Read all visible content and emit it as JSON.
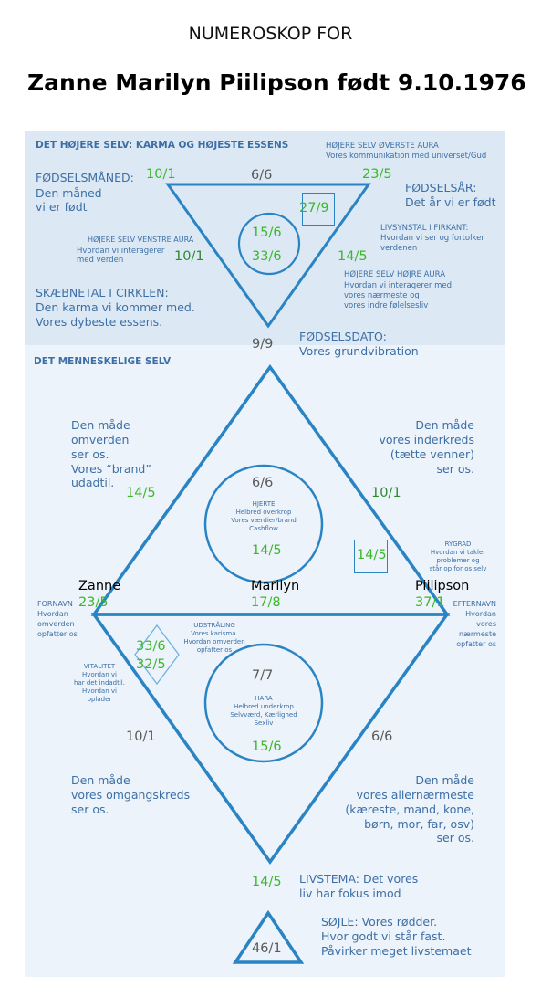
{
  "title": "NUMEROSKOP FOR",
  "subtitle": "Zanne Marilyn Piilipson født 9.10.1976",
  "upper": {
    "header": "DET HØJERE SELV: KARMA OG HØJESTE ESSENS",
    "aura_top_title": "HØJERE SELV ØVERSTE AURA",
    "aura_top_desc": "Vores kommunikation med universet/Gud",
    "birth_month_title": "FØDSELSMÅNED:",
    "birth_month_desc1": "Den måned",
    "birth_month_desc2": "vi er født",
    "birth_year_title": "FØDSELSÅR:",
    "birth_year_desc": "Det år vi er født",
    "left_aura_title": "HØJERE SELV VENSTRE AURA",
    "left_aura_desc1": "Hvordan vi interagerer",
    "left_aura_desc2": "med verden",
    "worldview_title": "LIVSYNSTAL I FIRKANT:",
    "worldview_desc1": "Hvordan vi ser og fortolker",
    "worldview_desc2": "verdenen",
    "right_aura_title": "HØJERE SELV HØJRE AURA",
    "right_aura_desc1": "Hvordan vi interagerer med",
    "right_aura_desc2": "vores nærmeste og",
    "right_aura_desc3": "vores indre følelsesliv",
    "fate_title": "SKÆBNETAL I CIRKLEN:",
    "fate_desc1": "Den karma vi kommer med.",
    "fate_desc2": "Vores dybeste essens.",
    "birthdate_title": "FØDSELSDATO:",
    "birthdate_desc": "Vores grundvibration",
    "n_month": "10/1",
    "n_top": "6/6",
    "n_year": "23/5",
    "n_square": "27/9",
    "n_circle1": "15/6",
    "n_circle2": "33/6",
    "n_left": "10/1",
    "n_right": "14/5",
    "n_birthdate": "9/9"
  },
  "human": {
    "header": "DET MENNESKELIGE SELV",
    "world_desc": [
      "Den måde",
      "omverden",
      "ser os.",
      "Vores “brand”",
      "udadtil."
    ],
    "inner_desc": [
      "Den måde",
      "vores inderkreds",
      "(tætte venner)",
      "ser os."
    ],
    "heart_title": "HJERTE",
    "heart_desc": [
      "Helbred overkrop",
      "Vores værdier/brand",
      "Cashflow"
    ],
    "spine_title": "RYGRAD",
    "spine_desc": [
      "Hvordan vi takler",
      "problemer og",
      "står op for os selv"
    ],
    "firstname_title": "FORNAVN",
    "firstname_desc": [
      "Hvordan",
      "omverden",
      "opfatter os"
    ],
    "lastname_title": "EFTERNAVN",
    "lastname_desc": [
      "Hvordan",
      "vores",
      "nærmeste",
      "opfatter os"
    ],
    "radiance_title": "UDSTRÅLING",
    "radiance_desc": [
      "Vores karisma.",
      "Hvordan omverden",
      "opfatter os"
    ],
    "vitality_title": "VITALITET",
    "vitality_desc": [
      "Hvordan vi",
      "har det indadtil.",
      "Hvordan vi",
      "oplader"
    ],
    "hara_title": "HARA",
    "hara_desc": [
      "Helbred underkrop",
      "Selvværd, Kærlighed",
      "Sexliv"
    ],
    "social_desc": [
      "Den måde",
      "vores omgangskreds",
      "ser os."
    ],
    "closest_desc": [
      "Den måde",
      "vores allernærmeste",
      "(kæreste, mand, kone,",
      "børn, mor, far, osv)",
      "ser os."
    ],
    "theme_title": "LIVSTEMA: Det vores",
    "theme_desc": "liv har fokus imod",
    "pillar_title": "SØJLE: Vores rødder.",
    "pillar_desc1": "Hvor godt vi står fast.",
    "pillar_desc2": "Påvirker meget livstemaet",
    "name_first": "Zanne",
    "name_middle": "Marilyn",
    "name_last": "Piilipson",
    "n_first": "23/5",
    "n_middle": "17/8",
    "n_last": "37/1",
    "n_upper_left": "14/5",
    "n_upper_right": "10/1",
    "n_heart_top": "6/6",
    "n_heart_bottom": "14/5",
    "n_spine": "14/5",
    "n_radiance": "33/6",
    "n_vitality": "32/5",
    "n_hara_top": "7/7",
    "n_hara_bottom": "15/6",
    "n_lower_left": "10/1",
    "n_lower_right": "6/6",
    "n_theme": "14/5",
    "n_pillar": "46/1"
  }
}
